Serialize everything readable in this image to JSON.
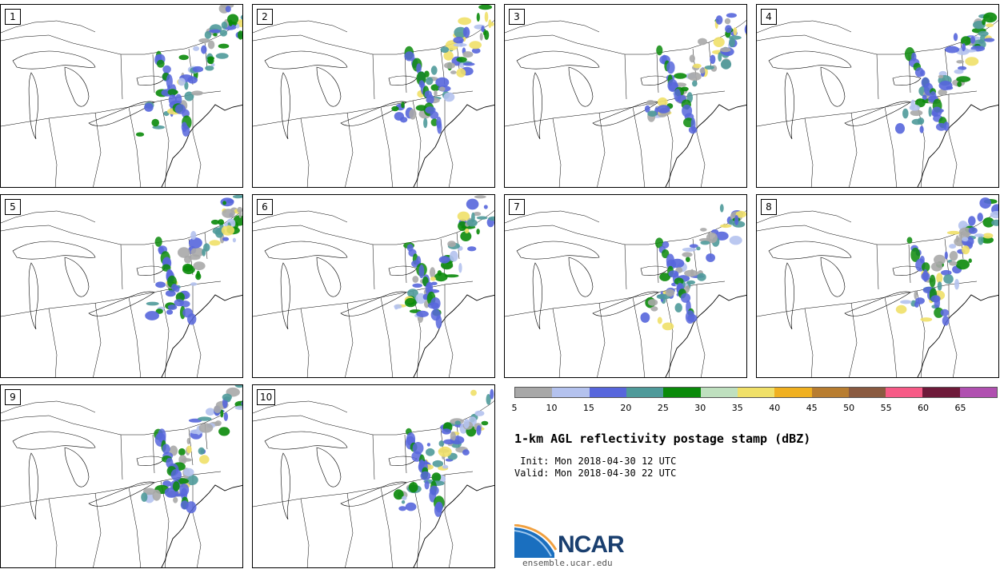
{
  "members": [
    {
      "label": "1"
    },
    {
      "label": "2"
    },
    {
      "label": "3"
    },
    {
      "label": "4"
    },
    {
      "label": "5"
    },
    {
      "label": "6"
    },
    {
      "label": "7"
    },
    {
      "label": "8"
    },
    {
      "label": "9"
    },
    {
      "label": "10"
    }
  ],
  "colorbar": {
    "ticks": [
      "5",
      "10",
      "15",
      "20",
      "25",
      "30",
      "35",
      "40",
      "45",
      "50",
      "55",
      "60",
      "65"
    ],
    "colors": [
      "#a8a8a8",
      "#b4c2ee",
      "#5766dc",
      "#4f9a9a",
      "#0a8a0a",
      "#bfe0bf",
      "#f0e068",
      "#f0b020",
      "#b87d30",
      "#8a5a40",
      "#f65a86",
      "#6e1a3a",
      "#b050b0"
    ]
  },
  "title": "1-km AGL reflectivity postage stamp (dBZ)",
  "init": " Init: Mon 2018-04-30 12 UTC",
  "valid": "Valid: Mon 2018-04-30 22 UTC",
  "logo": {
    "name": "NCAR",
    "url": "ensemble.ucar.edu",
    "icon": "ncar-wave-icon"
  }
}
